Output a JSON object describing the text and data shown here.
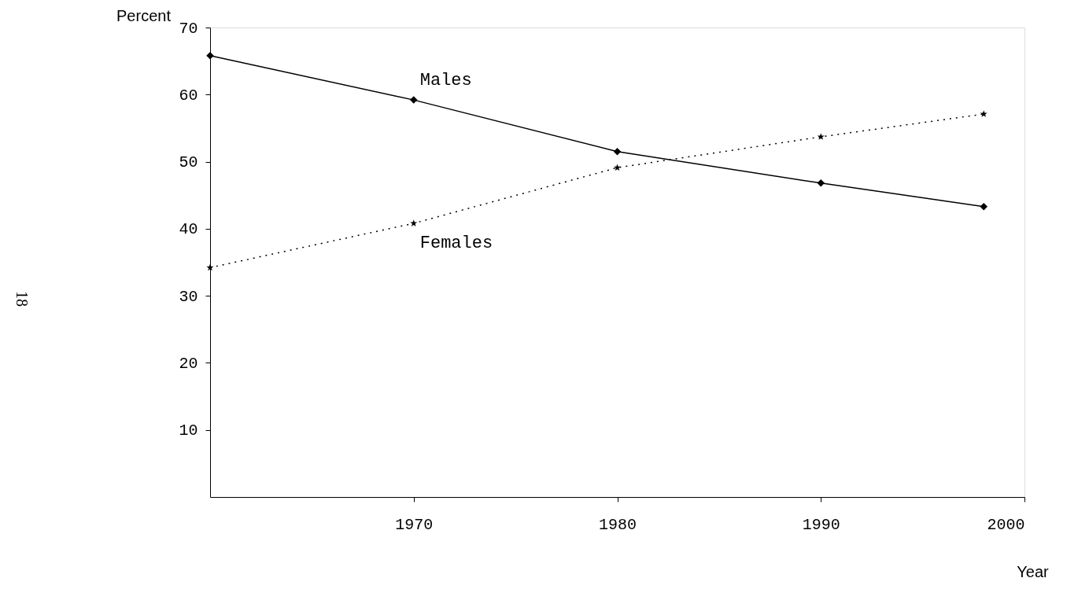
{
  "chart_data": {
    "type": "line",
    "xlabel": "Year",
    "ylabel": "Percent",
    "x": [
      1960,
      1970,
      1980,
      1990,
      1998
    ],
    "series": [
      {
        "name": "Males",
        "color": "#000000",
        "marker": "diamond",
        "line_style": "solid",
        "values": [
          65.8,
          59.2,
          51.5,
          46.8,
          43.3
        ]
      },
      {
        "name": "Females",
        "color": "#000000",
        "marker": "star",
        "line_style": "dotted",
        "values": [
          34.2,
          40.8,
          49.1,
          53.7,
          57.1
        ]
      }
    ],
    "xlim": [
      1960,
      2000
    ],
    "xticks": [
      1970,
      1980,
      1990,
      2000
    ],
    "ylim": [
      0,
      70
    ],
    "yticks": [
      10,
      20,
      30,
      40,
      50,
      60,
      70
    ],
    "grid": false,
    "annotations": [
      "18"
    ]
  }
}
